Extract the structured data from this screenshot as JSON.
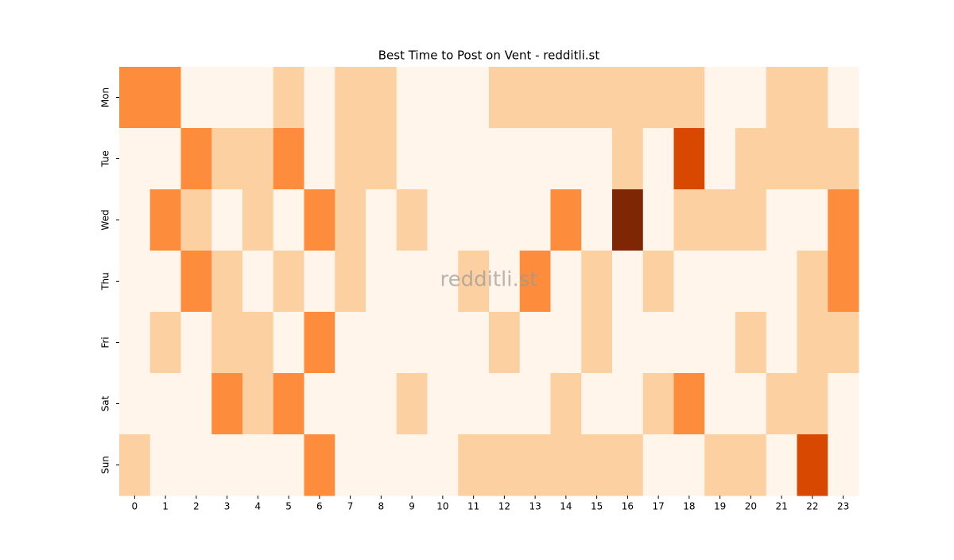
{
  "chart_data": {
    "type": "heatmap",
    "title": "Best Time to Post on Vent - redditli.st",
    "watermark": "redditli.st",
    "x": [
      "0",
      "1",
      "2",
      "3",
      "4",
      "5",
      "6",
      "7",
      "8",
      "9",
      "10",
      "11",
      "12",
      "13",
      "14",
      "15",
      "16",
      "17",
      "18",
      "19",
      "20",
      "21",
      "22",
      "23"
    ],
    "categories": [
      "Mon",
      "Tue",
      "Wed",
      "Thu",
      "Fri",
      "Sat",
      "Sun"
    ],
    "values": [
      [
        2,
        2,
        0,
        0,
        0,
        1,
        0,
        1,
        1,
        0,
        0,
        0,
        1,
        1,
        1,
        1,
        1,
        1,
        1,
        0,
        0,
        1,
        1,
        0
      ],
      [
        0,
        0,
        2,
        1,
        1,
        2,
        0,
        1,
        1,
        0,
        0,
        0,
        0,
        0,
        0,
        0,
        1,
        0,
        3,
        0,
        1,
        1,
        1,
        1
      ],
      [
        0,
        2,
        1,
        0,
        1,
        0,
        2,
        1,
        0,
        1,
        0,
        0,
        0,
        0,
        2,
        0,
        4,
        0,
        1,
        1,
        1,
        0,
        0,
        2
      ],
      [
        0,
        0,
        2,
        1,
        0,
        1,
        0,
        1,
        0,
        0,
        0,
        1,
        0,
        2,
        0,
        1,
        0,
        1,
        0,
        0,
        0,
        0,
        1,
        2
      ],
      [
        0,
        1,
        0,
        1,
        1,
        0,
        2,
        0,
        0,
        0,
        0,
        0,
        1,
        0,
        0,
        1,
        0,
        0,
        0,
        0,
        1,
        0,
        1,
        1
      ],
      [
        0,
        0,
        0,
        2,
        1,
        2,
        0,
        0,
        0,
        1,
        0,
        0,
        0,
        0,
        1,
        0,
        0,
        1,
        2,
        0,
        0,
        1,
        1,
        0
      ],
      [
        1,
        0,
        0,
        0,
        0,
        0,
        2,
        0,
        0,
        0,
        0,
        1,
        1,
        1,
        1,
        1,
        1,
        0,
        0,
        1,
        1,
        0,
        3,
        0
      ]
    ],
    "zlim": [
      0,
      4
    ],
    "colorscale": [
      "#fff5eb",
      "#fdd0a2",
      "#fd8d3c",
      "#d94801",
      "#7f2704"
    ]
  }
}
